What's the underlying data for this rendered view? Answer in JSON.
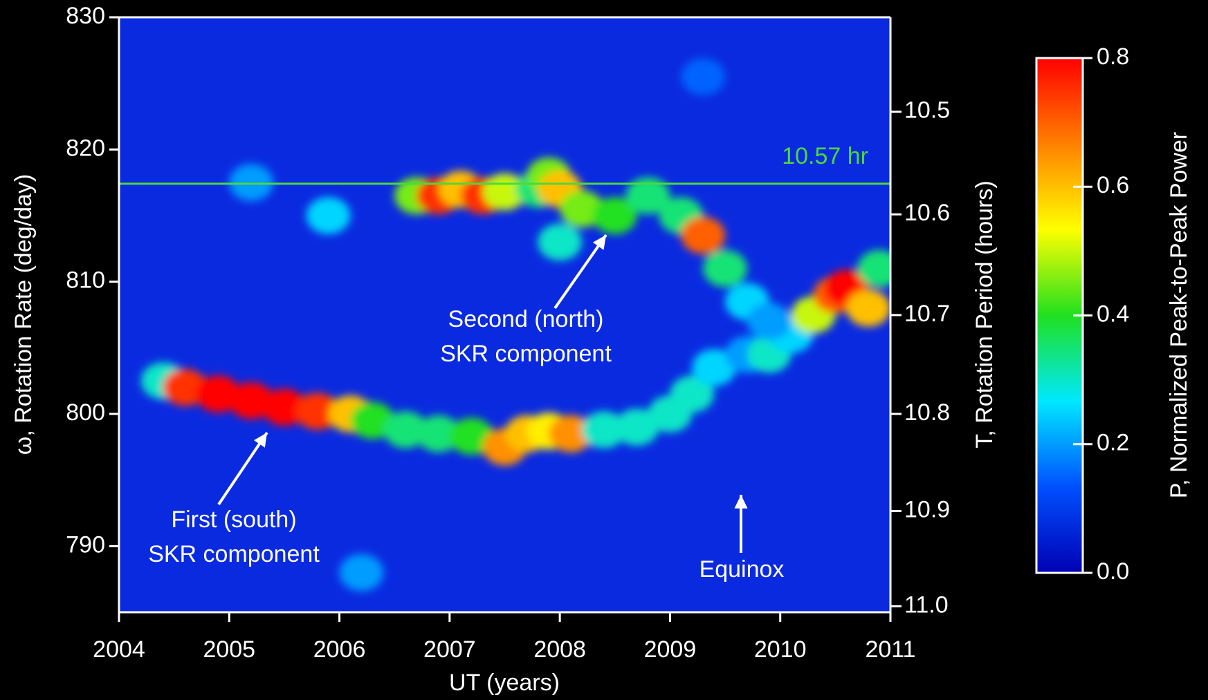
{
  "chart_data": {
    "type": "heatmap",
    "x_label": "UT (years)",
    "y_label": "ω, Rotation Rate (deg/day)",
    "y2_label": "T, Rotation Period (hours)",
    "colorbar_label": "P, Normalized Peak-to-Peak Power",
    "xlim": [
      2004,
      2011
    ],
    "xticks": [
      2004,
      2005,
      2006,
      2007,
      2008,
      2009,
      2010,
      2011
    ],
    "ylim": [
      785,
      830
    ],
    "yticks": [
      790,
      800,
      810,
      820,
      830
    ],
    "y2ticks": [
      10.5,
      10.6,
      10.7,
      10.8,
      10.9,
      {
        "value": 11,
        "label": "11.0"
      }
    ],
    "clim": [
      0,
      0.8
    ],
    "cticks": [
      {
        "value": 0,
        "label": "0.0"
      },
      0.2,
      0.4,
      0.6,
      0.8
    ],
    "colors": [
      "#0000b4",
      "#0050ff",
      "#00e8ff",
      "#20e020",
      "#ffff00",
      "#ff8000",
      "#ff0000"
    ],
    "background_color": "#0a2ae0",
    "reference_line": {
      "value": 10.57,
      "label": "10.57 hr",
      "axis": "y2",
      "color": "#4cd93c"
    },
    "x": [
      2004.4,
      2004.6,
      2004.9,
      2005.2,
      2005.5,
      2005.8,
      2006.1,
      2006.3,
      2006.6,
      2006.9,
      2007.2,
      2007.5,
      2007.7,
      2007.9,
      2008.1,
      2008.4,
      2008.7,
      2009.0,
      2009.2,
      2009.4,
      2009.7,
      2009.9,
      2010.1,
      2006.7,
      2006.9,
      2007.1,
      2007.3,
      2007.5,
      2007.8,
      2007.9,
      2008.0,
      2008.2,
      2008.5,
      2008.8,
      2009.1,
      2009.3,
      2009.5,
      2009.7,
      2009.9,
      2010.3,
      2010.5,
      2010.6,
      2010.8,
      2010.9,
      2005.2,
      2005.9,
      2008.0,
      2006.2,
      2009.3
    ],
    "y": [
      802.5,
      802,
      801.5,
      801,
      800.5,
      800.2,
      800,
      799.5,
      798.8,
      798.5,
      798.3,
      797.5,
      798.5,
      798.7,
      798.5,
      798.8,
      799,
      800,
      801.5,
      803.5,
      804.5,
      804.5,
      806,
      816.5,
      816.5,
      817,
      816.5,
      816.8,
      817,
      818,
      817,
      815.5,
      815,
      816.5,
      815,
      813.5,
      811,
      808.5,
      807,
      807.5,
      809,
      809.5,
      808,
      811,
      817.5,
      815,
      813,
      788,
      825.5
    ],
    "values": [
      0.3,
      0.75,
      0.8,
      0.8,
      0.8,
      0.75,
      0.6,
      0.4,
      0.35,
      0.35,
      0.4,
      0.65,
      0.6,
      0.55,
      0.65,
      0.3,
      0.3,
      0.3,
      0.3,
      0.25,
      0.2,
      0.3,
      0.25,
      0.45,
      0.75,
      0.6,
      0.75,
      0.5,
      0.35,
      0.45,
      0.6,
      0.45,
      0.4,
      0.35,
      0.35,
      0.7,
      0.35,
      0.25,
      0.2,
      0.5,
      0.7,
      0.8,
      0.6,
      0.35,
      0.2,
      0.25,
      0.3,
      0.2,
      0.15
    ],
    "annotations": [
      {
        "lines": [
          "Second (north)",
          "SKR component"
        ]
      },
      {
        "lines": [
          "First (south)",
          "SKR component"
        ]
      },
      {
        "lines": [
          "Equinox"
        ]
      }
    ]
  }
}
